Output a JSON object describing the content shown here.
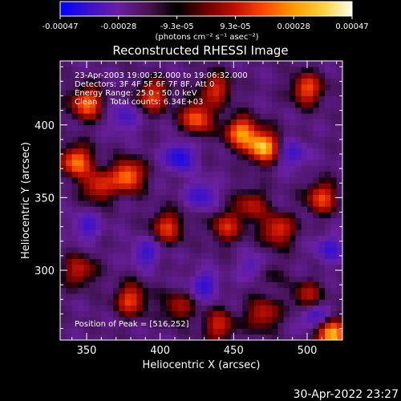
{
  "colorbar": {
    "tick_labels": [
      "-0.00047",
      "-0.00028",
      "-9.3e-05",
      "9.3e-05",
      "0.00028",
      "0.00047"
    ],
    "units": "(photons cm⁻² s⁻¹ asec⁻²)",
    "colors": [
      "#0000ff",
      "#3a12c8",
      "#6a1fa0",
      "#4a1450",
      "#000000",
      "#6a0000",
      "#c01000",
      "#ff4a00",
      "#ff9a00",
      "#ffd040",
      "#ffffe8"
    ]
  },
  "chart_data": {
    "type": "heatmap",
    "title": "Reconstructed RHESSI Image",
    "xlabel": "Heliocentric X (arcsec)",
    "ylabel": "Heliocentric Y (arcsec)",
    "xlim": [
      332,
      524
    ],
    "ylim": [
      252,
      444
    ],
    "x_ticks": [
      350,
      400,
      450,
      500
    ],
    "y_ticks": [
      300,
      350,
      400
    ],
    "value_range": [
      -0.00047,
      0.00047
    ],
    "peak": {
      "x": 516,
      "y": 252
    },
    "annotations": {
      "time_range": "23-Apr-2003 19:00:32.000 to 19:06:32.000",
      "detectors": "Detectors: 3F 4F 5F 6F 7F 8F, Att 0",
      "energy": "Energy Range: 25.0 - 50.0 keV",
      "clean": "Clean     Total counts: 6.34E+03",
      "peak_text": "Position of Peak = [516,252]"
    },
    "hot_spots": [
      {
        "x": 470,
        "y": 385,
        "v": 0.00047
      },
      {
        "x": 455,
        "y": 395,
        "v": 0.0004
      },
      {
        "x": 425,
        "y": 405,
        "v": 0.00035
      },
      {
        "x": 395,
        "y": 420,
        "v": 0.0003
      },
      {
        "x": 350,
        "y": 415,
        "v": 0.00036
      },
      {
        "x": 343,
        "y": 375,
        "v": 0.00038
      },
      {
        "x": 358,
        "y": 358,
        "v": 0.00028
      },
      {
        "x": 378,
        "y": 365,
        "v": 0.0004
      },
      {
        "x": 405,
        "y": 330,
        "v": 0.00028
      },
      {
        "x": 445,
        "y": 330,
        "v": 0.00025
      },
      {
        "x": 480,
        "y": 328,
        "v": 0.0003
      },
      {
        "x": 462,
        "y": 345,
        "v": 0.00022
      },
      {
        "x": 510,
        "y": 350,
        "v": 0.0003
      },
      {
        "x": 500,
        "y": 425,
        "v": 0.00032
      },
      {
        "x": 438,
        "y": 425,
        "v": 0.00026
      },
      {
        "x": 345,
        "y": 300,
        "v": 0.00024
      },
      {
        "x": 380,
        "y": 280,
        "v": 0.0003
      },
      {
        "x": 412,
        "y": 275,
        "v": 0.0002
      },
      {
        "x": 440,
        "y": 262,
        "v": 0.00025
      },
      {
        "x": 470,
        "y": 270,
        "v": 0.00025
      },
      {
        "x": 500,
        "y": 282,
        "v": 0.00022
      },
      {
        "x": 516,
        "y": 256,
        "v": 0.00047
      },
      {
        "x": 470,
        "y": 300,
        "v": 0.0002
      }
    ],
    "cold_spots": [
      {
        "x": 413,
        "y": 378,
        "v": -0.0003
      },
      {
        "x": 465,
        "y": 302,
        "v": -0.00028
      },
      {
        "x": 428,
        "y": 352,
        "v": -0.00022
      },
      {
        "x": 505,
        "y": 268,
        "v": -0.00025
      },
      {
        "x": 490,
        "y": 380,
        "v": -0.0002
      },
      {
        "x": 390,
        "y": 312,
        "v": -0.0002
      },
      {
        "x": 430,
        "y": 290,
        "v": -0.00022
      },
      {
        "x": 375,
        "y": 405,
        "v": -0.00018
      },
      {
        "x": 350,
        "y": 330,
        "v": -0.00018
      },
      {
        "x": 515,
        "y": 315,
        "v": -0.0002
      }
    ]
  },
  "footer": {
    "timestamp": "30-Apr-2022 23:27"
  }
}
